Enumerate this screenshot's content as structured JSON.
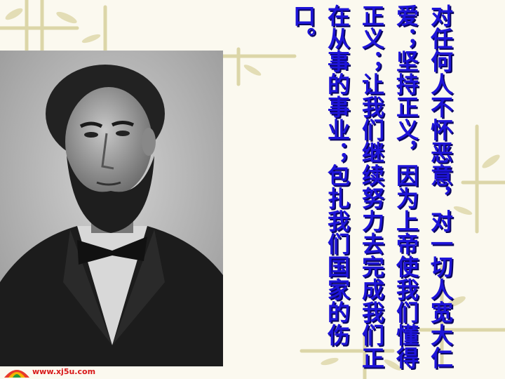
{
  "slide": {
    "text": "对任何人不怀恶意，对一切人宽大仁爱；坚持正义，因为上帝使我们懂得正义；让我们继续努力去完成我们正在从事的事业；包扎我们国家的伤口。",
    "text_color": "#1e14d8",
    "background_color": "#fbf9ef"
  },
  "portrait": {
    "icon": "portrait-photo-icon"
  },
  "footer": {
    "url": "www.xj5u.com",
    "logo_icon": "colored-fan-logo-icon"
  }
}
